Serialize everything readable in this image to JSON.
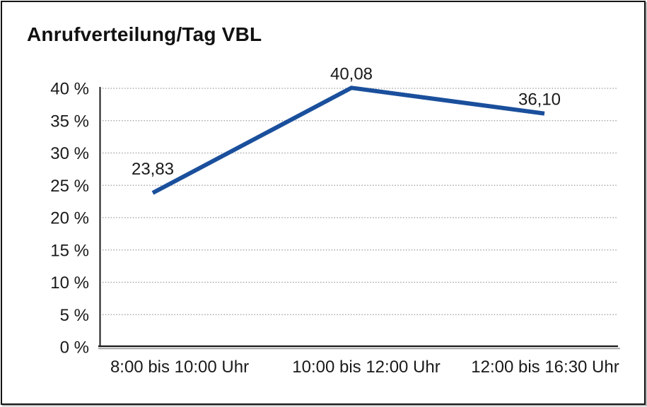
{
  "chart": {
    "title": "Anrufverteilung/Tag VBL"
  },
  "chart_data": {
    "type": "line",
    "title": "Anrufverteilung/Tag VBL",
    "categories": [
      "8:00 bis 10:00 Uhr",
      "10:00 bis 12:00 Uhr",
      "12:00 bis 16:30 Uhr"
    ],
    "series": [
      {
        "name": "Anrufverteilung/Tag VBL",
        "values": [
          23.83,
          40.08,
          36.1
        ]
      }
    ],
    "point_labels": [
      "23,83",
      "40,08",
      "36,10"
    ],
    "y_ticks": [
      0,
      5,
      10,
      15,
      20,
      25,
      30,
      35,
      40
    ],
    "y_tick_labels": [
      "0 %",
      "5 %",
      "10 %",
      "15 %",
      "20 %",
      "25 %",
      "30 %",
      "35 %",
      "40 %"
    ],
    "ylim": [
      0,
      40
    ],
    "xlabel": "",
    "ylabel": "",
    "grid": "horizontal-dotted",
    "legend": "none",
    "colors": {
      "line": "#1A4F9C",
      "gridline": "#999999",
      "axis": "#1a1a1a",
      "axis_shadow": "#aaaaaa",
      "text": "#1a1a1a"
    }
  }
}
